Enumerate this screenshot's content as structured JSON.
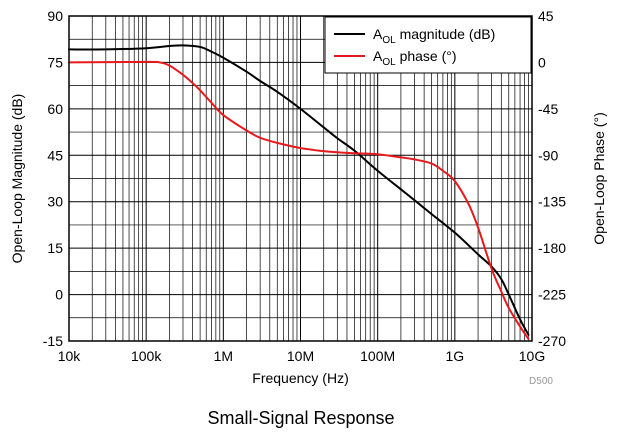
{
  "chart_data": {
    "type": "line",
    "xlabel": "Frequency (Hz)",
    "ylabel_left": "Open-Loop Magnitude (dB)",
    "ylabel_right": "Open-Loop Phase (°)",
    "xscale": "log",
    "xlim": [
      10000,
      10000000000
    ],
    "ylim_left": [
      -15,
      90
    ],
    "ylim_right": [
      -270,
      45
    ],
    "xticks": [
      {
        "value": 10000,
        "label": "10k"
      },
      {
        "value": 100000,
        "label": "100k"
      },
      {
        "value": 1000000,
        "label": "1M"
      },
      {
        "value": 10000000,
        "label": "10M"
      },
      {
        "value": 100000000,
        "label": "100M"
      },
      {
        "value": 1000000000,
        "label": "1G"
      },
      {
        "value": 10000000000,
        "label": "10G"
      }
    ],
    "yticks_left": [
      {
        "value": 90,
        "label": "90"
      },
      {
        "value": 75,
        "label": "75"
      },
      {
        "value": 60,
        "label": "60"
      },
      {
        "value": 45,
        "label": "45"
      },
      {
        "value": 30,
        "label": "30"
      },
      {
        "value": 15,
        "label": "15"
      },
      {
        "value": 0,
        "label": "0"
      },
      {
        "value": -15,
        "label": "-15"
      }
    ],
    "yticks_right": [
      {
        "value": 45,
        "label": "45"
      },
      {
        "value": 0,
        "label": "0"
      },
      {
        "value": -45,
        "label": "-45"
      },
      {
        "value": -90,
        "label": "-90"
      },
      {
        "value": -135,
        "label": "-135"
      },
      {
        "value": -180,
        "label": "-180"
      },
      {
        "value": -225,
        "label": "-225"
      },
      {
        "value": -270,
        "label": "-270"
      }
    ],
    "grid": true,
    "legend_position": "top-right",
    "series": [
      {
        "name": "A",
        "name_sub": "OL",
        "name_rest": " magnitude (dB)",
        "color": "#000000",
        "axis": "left",
        "points": [
          [
            10000,
            79.2
          ],
          [
            30000,
            79.2
          ],
          [
            100000,
            79.6
          ],
          [
            200000,
            80.3
          ],
          [
            300000,
            80.5
          ],
          [
            500000,
            80.0
          ],
          [
            700000,
            78.5
          ],
          [
            1000000,
            76.5
          ],
          [
            2000000,
            72.0
          ],
          [
            3000000,
            69.0
          ],
          [
            5000000,
            65.5
          ],
          [
            10000000,
            60.0
          ],
          [
            20000000,
            54.0
          ],
          [
            30000000,
            50.5
          ],
          [
            50000000,
            46.5
          ],
          [
            100000000,
            40.0
          ],
          [
            200000000,
            34.0
          ],
          [
            300000000,
            30.5
          ],
          [
            500000000,
            26.0
          ],
          [
            1000000000,
            20.0
          ],
          [
            2000000000,
            13.0
          ],
          [
            3000000000,
            9.0
          ],
          [
            4000000000,
            5.0
          ],
          [
            5000000000,
            0.0
          ],
          [
            7000000000,
            -8.0
          ],
          [
            9000000000,
            -13.0
          ]
        ]
      },
      {
        "name": "A",
        "name_sub": "OL",
        "name_rest": " phase (°)",
        "color": "#e8191d",
        "axis": "right",
        "points": [
          [
            10000,
            0
          ],
          [
            100000,
            0.5
          ],
          [
            150000,
            0
          ],
          [
            200000,
            -3
          ],
          [
            300000,
            -12
          ],
          [
            400000,
            -20
          ],
          [
            500000,
            -27
          ],
          [
            700000,
            -39
          ],
          [
            1000000,
            -51
          ],
          [
            2000000,
            -66
          ],
          [
            3000000,
            -73
          ],
          [
            5000000,
            -78
          ],
          [
            10000000,
            -83
          ],
          [
            20000000,
            -86
          ],
          [
            30000000,
            -87
          ],
          [
            50000000,
            -88
          ],
          [
            100000000,
            -89
          ],
          [
            200000000,
            -92
          ],
          [
            300000000,
            -94
          ],
          [
            500000000,
            -98
          ],
          [
            700000000,
            -105
          ],
          [
            1000000000,
            -115
          ],
          [
            1500000000,
            -137
          ],
          [
            2000000000,
            -160
          ],
          [
            3000000000,
            -200
          ],
          [
            4000000000,
            -222
          ],
          [
            5000000000,
            -238
          ],
          [
            7000000000,
            -256
          ],
          [
            9000000000,
            -268
          ]
        ]
      }
    ]
  },
  "figure_id": "D500",
  "caption": "Small-Signal Response"
}
